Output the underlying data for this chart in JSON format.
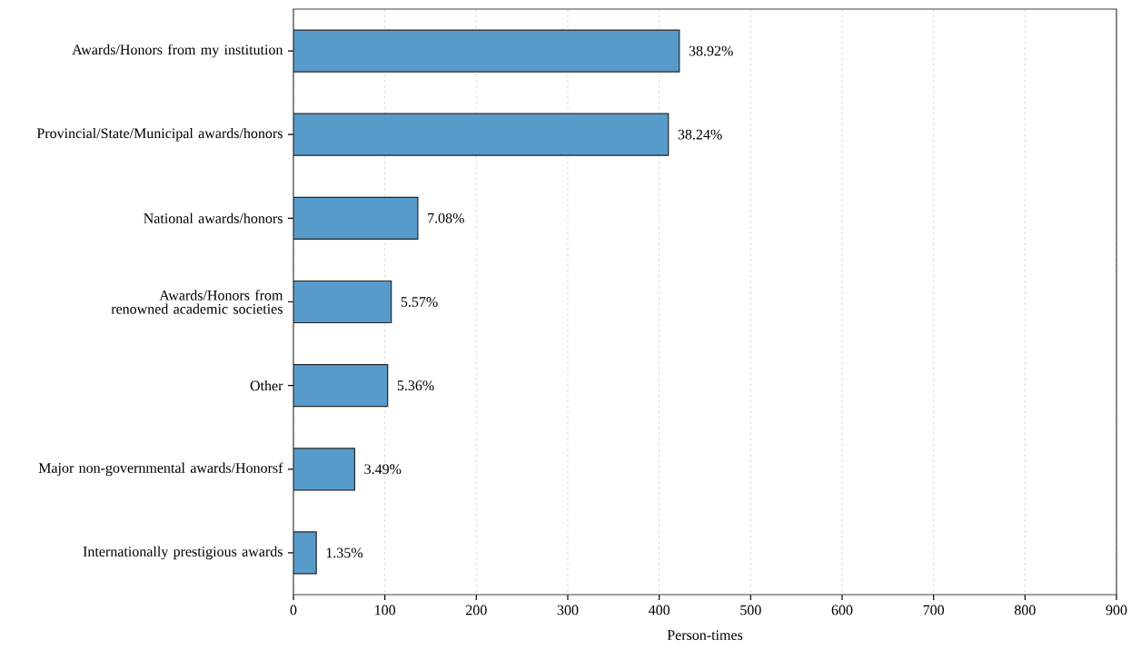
{
  "chart_data": {
    "type": "bar",
    "orientation": "horizontal",
    "xlabel": "Person-times",
    "categories": [
      "Awards/Honors from my institution",
      "Provincial/State/Municipal awards/honors",
      "National awards/honors",
      "Awards/Honors from renowned academic societies",
      "Other",
      "Major non-governmental awards/Honorsf",
      "Internationally prestigious awards"
    ],
    "values": [
      422,
      410,
      136,
      107,
      103,
      67,
      25
    ],
    "annotations": [
      {
        "text": "38.92%",
        "x": 422,
        "y": "Awards/Honors from my institution"
      },
      {
        "text": "38.24%",
        "x": 410,
        "y": "Provincial/State/Municipal awards/honors"
      },
      {
        "text": "7.08%",
        "x": 136,
        "y": "National awards/honors"
      },
      {
        "text": "5.57%",
        "x": 107,
        "y": "Awards/Honors from renowned academic societies"
      },
      {
        "text": "5.36%",
        "x": 103,
        "y": "Other"
      },
      {
        "text": "3.49%",
        "x": 67,
        "y": "Major non-governmental awards/Honorsf"
      },
      {
        "text": "1.35%",
        "x": 25,
        "y": "Internationally prestigious awards"
      }
    ],
    "color": "#579bcb",
    "xlim": [
      0,
      900
    ],
    "xticks": [
      0,
      100,
      200,
      300,
      400,
      500,
      600,
      700,
      800,
      900
    ],
    "grid": "x"
  }
}
